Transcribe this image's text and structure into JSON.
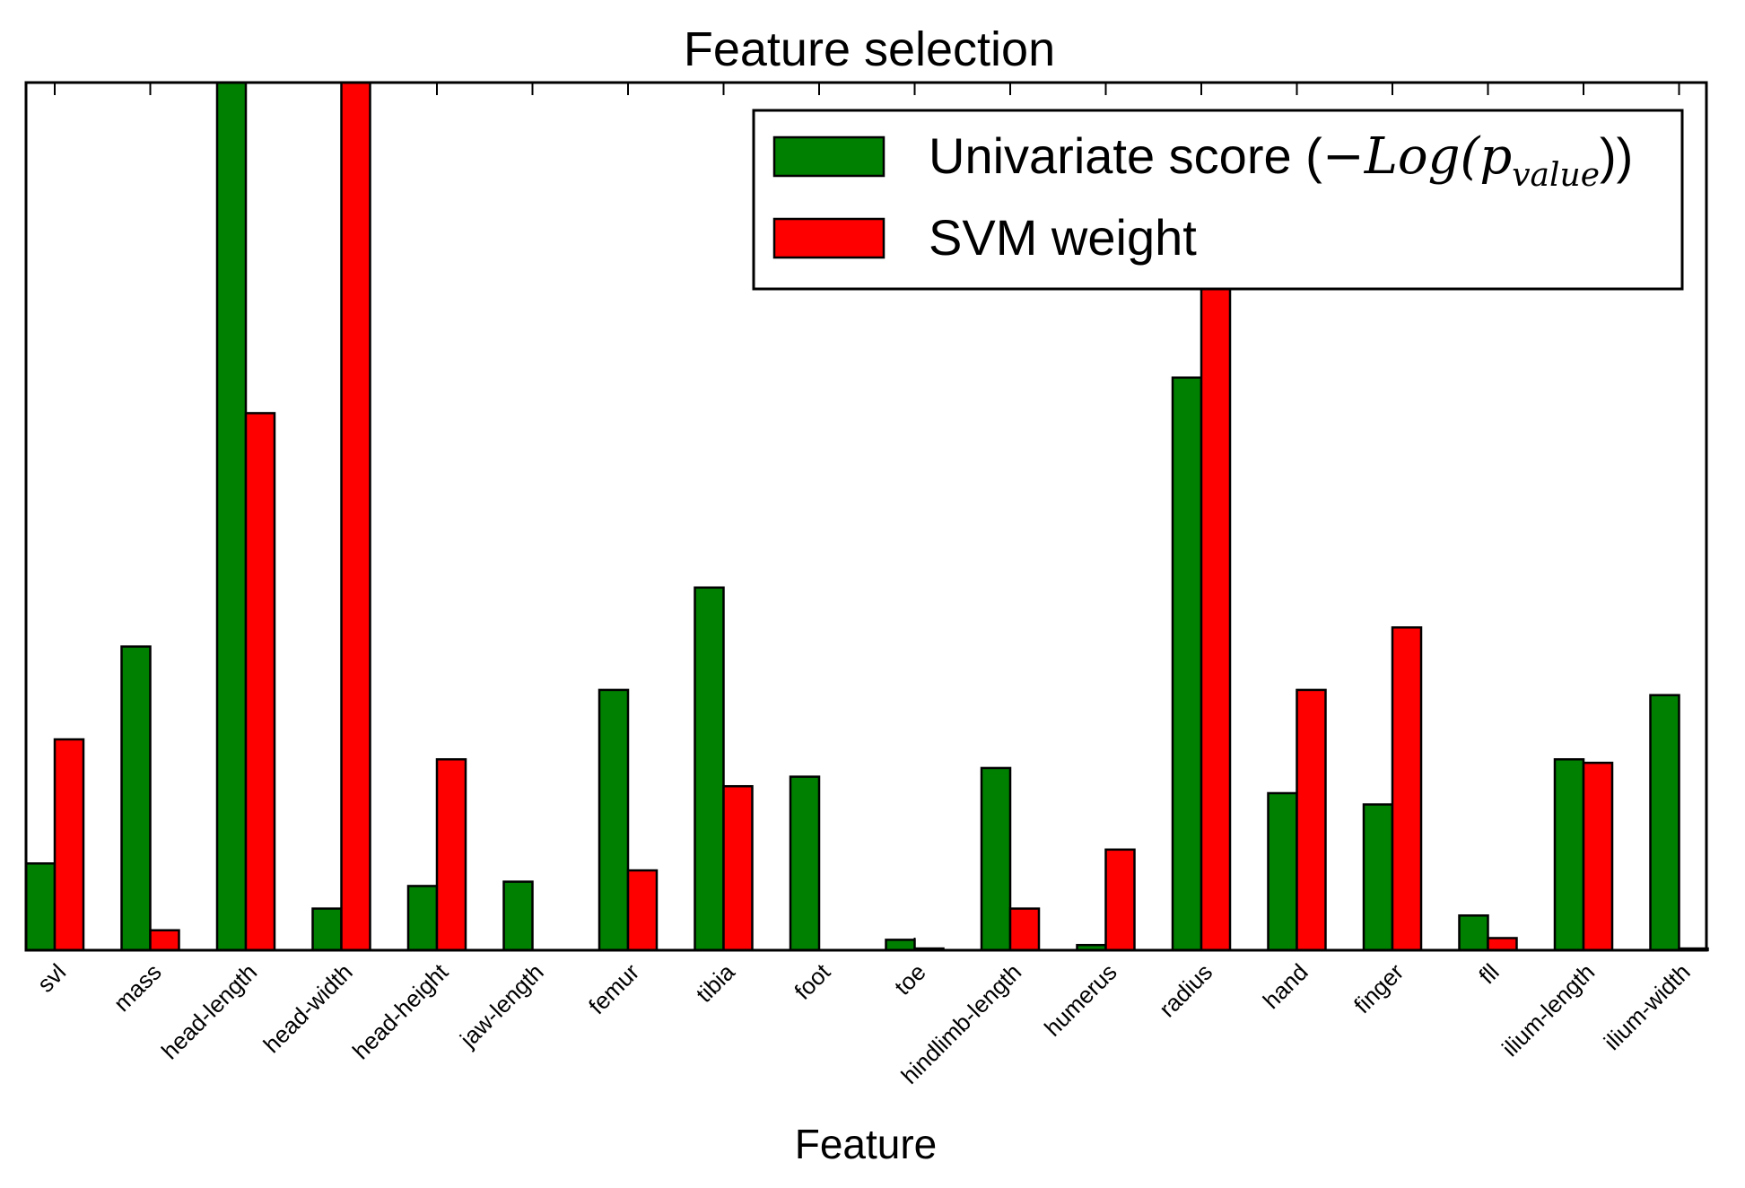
{
  "chart_data": {
    "type": "bar",
    "title": "Feature selection",
    "xlabel": "Feature",
    "ylabel": "",
    "ylim": [
      0,
      1
    ],
    "grid": false,
    "legend_position": "top-right",
    "categories": [
      "svl",
      "mass",
      "head-length",
      "head-width",
      "head-height",
      "jaw-length",
      "femur",
      "tibia",
      "foot",
      "toe",
      "hindlimb-length",
      "humerus",
      "radius",
      "hand",
      "finger",
      "fll",
      "ilium-length",
      "ilium-width"
    ],
    "series": [
      {
        "name": "Univariate score (−Log(p_value))",
        "color": "#008000",
        "values": [
          0.1,
          0.35,
          1.0,
          0.048,
          0.074,
          0.079,
          0.3,
          0.418,
          0.2,
          0.012,
          0.21,
          0.006,
          0.66,
          0.181,
          0.168,
          0.04,
          0.22,
          0.294
        ]
      },
      {
        "name": "SVM weight",
        "color": "#ff0000",
        "values": [
          0.243,
          0.023,
          0.619,
          1.0,
          0.22,
          0.0,
          0.092,
          0.189,
          0.0,
          0.002,
          0.048,
          0.116,
          0.78,
          0.3,
          0.372,
          0.014,
          0.216,
          0.002
        ]
      }
    ]
  },
  "legend": {
    "univariate_prefix": "Univariate score (",
    "univariate_math": "−Log(p",
    "univariate_subscript": "value",
    "univariate_suffix": "))",
    "svm": "SVM weight"
  }
}
